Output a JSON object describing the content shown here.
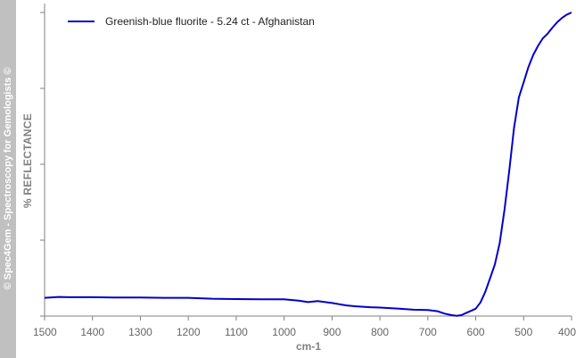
{
  "watermark": "© Spec4Gem - Spectroscopy for Gemologists ©",
  "chart_data": {
    "type": "line",
    "title": "",
    "xlabel": "cm-1",
    "ylabel": "% REFLECTANCE",
    "xlim": [
      1500,
      400
    ],
    "ylim": [
      0,
      100
    ],
    "x_reversed": true,
    "grid": false,
    "legend_position": "top-left",
    "x_ticks": [
      1500,
      1400,
      1300,
      1200,
      1100,
      1000,
      900,
      800,
      700,
      600,
      500,
      400
    ],
    "x_tick_labels": [
      "1500",
      "1400",
      "1300",
      "1200",
      "1100",
      "1000",
      "900",
      "800",
      "700",
      "600",
      "500",
      "400"
    ],
    "y_ticks": [
      0,
      25,
      50,
      75,
      100
    ],
    "colors": {
      "series": "#0000cc",
      "axis": "#808080",
      "sidebar": "#c0c0c0"
    },
    "series": [
      {
        "name": "Greenish-blue fluorite - 5.24 ct - Afghanistan",
        "x": [
          1500,
          1470,
          1450,
          1400,
          1350,
          1300,
          1250,
          1200,
          1150,
          1100,
          1050,
          1000,
          970,
          950,
          930,
          900,
          870,
          850,
          820,
          800,
          760,
          730,
          700,
          680,
          665,
          650,
          640,
          630,
          620,
          610,
          600,
          590,
          580,
          570,
          560,
          550,
          540,
          530,
          520,
          510,
          500,
          490,
          480,
          470,
          460,
          450,
          440,
          430,
          420,
          410,
          400
        ],
        "y": [
          6.0,
          6.3,
          6.2,
          6.2,
          6.1,
          6.1,
          6.0,
          6.0,
          5.7,
          5.6,
          5.5,
          5.5,
          5.1,
          4.6,
          4.9,
          4.3,
          3.5,
          3.2,
          2.9,
          2.8,
          2.4,
          2.1,
          2.0,
          1.6,
          0.8,
          0.3,
          0.1,
          0.3,
          1.0,
          1.7,
          2.4,
          4.5,
          8.0,
          12.5,
          17.0,
          24.0,
          35.0,
          48.0,
          62.0,
          72.0,
          77.0,
          82.0,
          86.0,
          89.0,
          91.5,
          93.0,
          95.0,
          96.8,
          98.2,
          99.3,
          100.0
        ]
      }
    ]
  }
}
